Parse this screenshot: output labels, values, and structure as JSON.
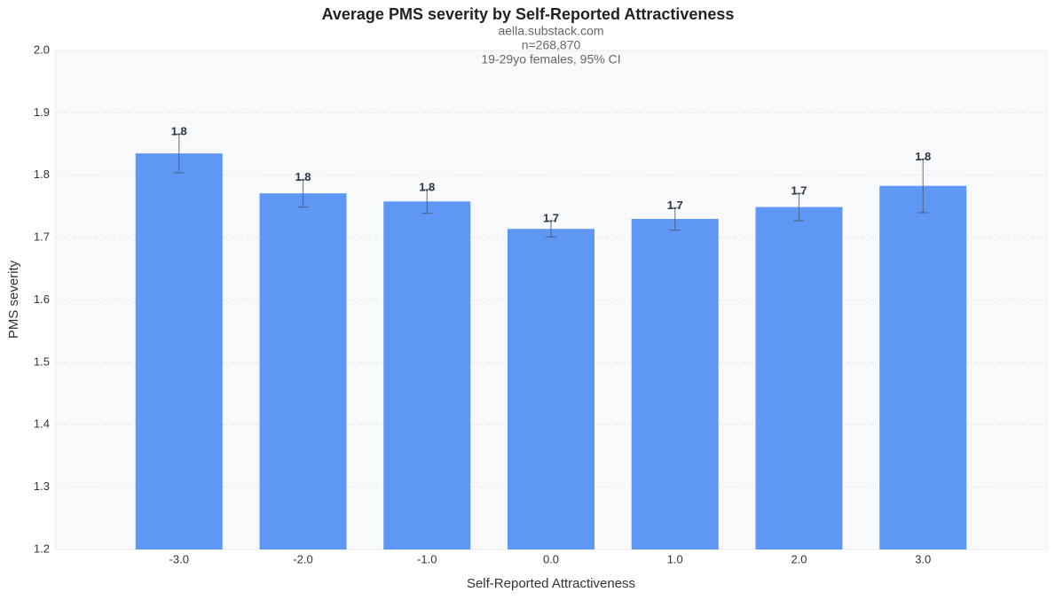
{
  "chart_data": {
    "type": "bar",
    "title": "Average PMS severity by Self-Reported Attractiveness",
    "subtitle": [
      "aella.substack.com",
      "n=268,870",
      "19-29yo females, 95% CI"
    ],
    "x_label": "Self-Reported Attractiveness",
    "y_label": "PMS severity",
    "categories": [
      "-3.0",
      "-2.0",
      "-1.0",
      "0.0",
      "1.0",
      "2.0",
      "3.0"
    ],
    "values": [
      1.835,
      1.771,
      1.758,
      1.714,
      1.73,
      1.749,
      1.783
    ],
    "value_labels": [
      "1.8",
      "1.8",
      "1.8",
      "1.7",
      "1.7",
      "1.7",
      "1.8"
    ],
    "errors": [
      0.031,
      0.022,
      0.019,
      0.013,
      0.018,
      0.022,
      0.043
    ],
    "color": "#5f97f5",
    "ylim": [
      1.2,
      2.0
    ],
    "yticks": [
      1.2,
      1.3,
      1.4,
      1.5,
      1.6,
      1.7,
      1.8,
      1.9,
      {
        "value": 2.0,
        "label": "2.0"
      }
    ],
    "grid": true
  }
}
